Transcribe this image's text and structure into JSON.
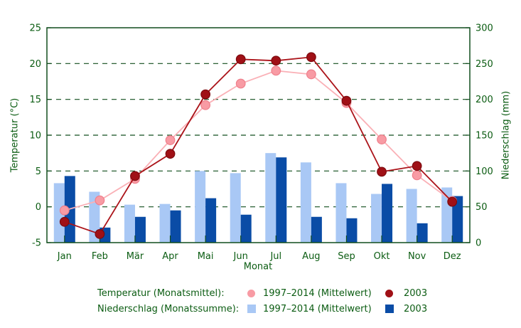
{
  "colors": {
    "background": "#ffffff",
    "text_green": "#0b5c12",
    "axis_green": "#114d1d",
    "pink": "#f89ba4",
    "pink_line": "#fab0b6",
    "pink_edge": "#ef7f8b",
    "dark_red": "#a01016",
    "dark_red_line": "#ab1319",
    "dark_red_edge": "#7c0a0e",
    "light_blue": "#a9c8f5",
    "dark_blue": "#0a4ca6"
  },
  "chart_data": {
    "type": "combo-bar-line",
    "title": "",
    "xlabel": "Monat",
    "ylabel_left": "Temperatur (°C)",
    "ylabel_right": "Niederschlag (mm)",
    "ylim_left": [
      -5,
      25
    ],
    "ylim_right": [
      0,
      300
    ],
    "categories": [
      "Jan",
      "Feb",
      "Mär",
      "Apr",
      "Mai",
      "Jun",
      "Jul",
      "Aug",
      "Sep",
      "Okt",
      "Nov",
      "Dez"
    ],
    "grid_left_values": [
      0,
      5,
      10,
      15,
      20
    ],
    "grid_style": "dashed horizontal, dark green",
    "legend_position": "bottom",
    "axes": {
      "y_left_ticks": [
        -5,
        0,
        5,
        10,
        15,
        20,
        25
      ],
      "y_right_ticks": [
        0,
        50,
        100,
        150,
        200,
        250,
        300
      ]
    },
    "series": [
      {
        "id": "niederschlag-mittelwert",
        "name": "Niederschlag (Monatssumme) 1997–2014 (Mittelwert)",
        "type": "bar",
        "axis": "right",
        "color": "#a9c8f5",
        "values": [
          83,
          71,
          53,
          54,
          100,
          97,
          125,
          112,
          83,
          68,
          75,
          77
        ]
      },
      {
        "id": "niederschlag-2003",
        "name": "Niederschlag (Monatssumme) 2003",
        "type": "bar",
        "axis": "right",
        "color": "#0a4ca6",
        "values": [
          93,
          21,
          36,
          45,
          62,
          39,
          119,
          36,
          34,
          82,
          27,
          65
        ]
      },
      {
        "id": "temperatur-mittelwert",
        "name": "Temperatur (Monatsmittel) 1997–2014 (Mittelwert)",
        "type": "line",
        "axis": "left",
        "color": "#f89ba4",
        "line_color": "#fab0b6",
        "edge_color": "#ef7f8b",
        "values": [
          -0.5,
          0.9,
          3.9,
          9.3,
          14.2,
          17.2,
          19.0,
          18.5,
          14.5,
          9.4,
          4.4,
          0.8
        ]
      },
      {
        "id": "temperatur-2003",
        "name": "Temperatur (Monatsmittel) 2003",
        "type": "line",
        "axis": "left",
        "color": "#a01016",
        "line_color": "#ab1319",
        "edge_color": "#7c0a0e",
        "values": [
          -2.1,
          -3.8,
          4.3,
          7.4,
          15.7,
          20.6,
          20.4,
          20.9,
          14.8,
          4.9,
          5.7,
          0.7
        ]
      }
    ]
  },
  "legend": {
    "rows": [
      {
        "label": "Temperatur (Monatsmittel):",
        "entries": [
          {
            "marker": "circle",
            "color": "#f89ba4",
            "text": "1997–2014 (Mittelwert)"
          },
          {
            "marker": "circle",
            "color": "#a01016",
            "text": "2003"
          }
        ]
      },
      {
        "label": "Niederschlag (Monatssumme):",
        "entries": [
          {
            "marker": "square",
            "color": "#a9c8f5",
            "text": "1997–2014 (Mittelwert)"
          },
          {
            "marker": "square",
            "color": "#0a4ca6",
            "text": "2003"
          }
        ]
      }
    ]
  }
}
